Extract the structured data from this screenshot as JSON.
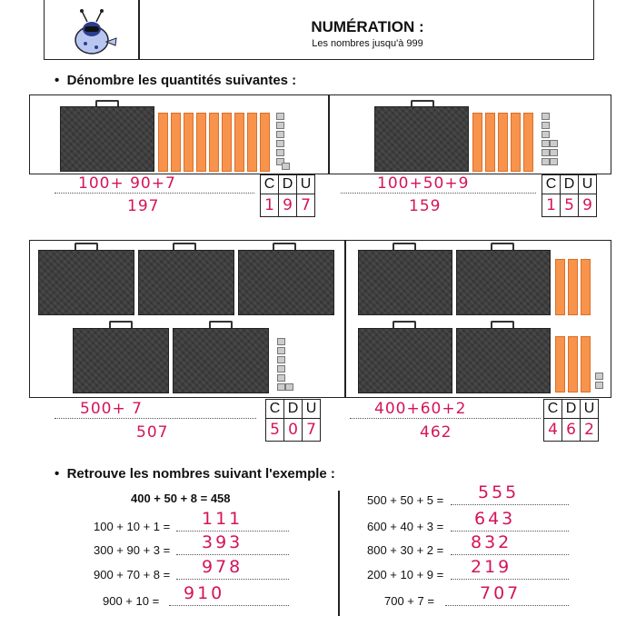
{
  "header": {
    "title": "NUMÉRATION :",
    "subtitle": "Les nombres jusqu'à 999"
  },
  "section1": {
    "heading": "Dénombre les quantités suivantes :",
    "columns": [
      "C",
      "D",
      "U"
    ],
    "exercises": [
      {
        "hundreds": 1,
        "tens": 9,
        "units": 7,
        "sum": "100+ 90+7",
        "total": "197",
        "digits": [
          "1",
          "9",
          "7"
        ]
      },
      {
        "hundreds": 1,
        "tens": 5,
        "units": 9,
        "sum": "100+50+9",
        "total": "159",
        "digits": [
          "1",
          "5",
          "9"
        ]
      },
      {
        "hundreds": 5,
        "tens": 0,
        "units": 7,
        "sum": "500+ 7",
        "total": "507",
        "digits": [
          "5",
          "0",
          "7"
        ]
      },
      {
        "hundreds": 4,
        "tens": 6,
        "units": 2,
        "sum": "400+60+2",
        "total": "462",
        "digits": [
          "4",
          "6",
          "2"
        ]
      }
    ]
  },
  "section2": {
    "heading": "Retrouve les nombres suivant l'exemple :",
    "example": "400 + 50 + 8 = 458",
    "left": [
      {
        "expr": "100 + 10 + 1 =",
        "answer": "111"
      },
      {
        "expr": "300 + 90 + 3 =",
        "answer": "393"
      },
      {
        "expr": "900 + 70 + 8 =",
        "answer": "978"
      },
      {
        "expr": "900 + 10 =",
        "answer": "910"
      }
    ],
    "right": [
      {
        "expr": "500 + 50 + 5 =",
        "answer": "555"
      },
      {
        "expr": "600 + 40 + 3 =",
        "answer": "643"
      },
      {
        "expr": "800 + 30 + 2 =",
        "answer": "832"
      },
      {
        "expr": "200 + 10 + 9 =",
        "answer": "219"
      },
      {
        "expr": "700 + 7 =",
        "answer": "707"
      }
    ]
  }
}
